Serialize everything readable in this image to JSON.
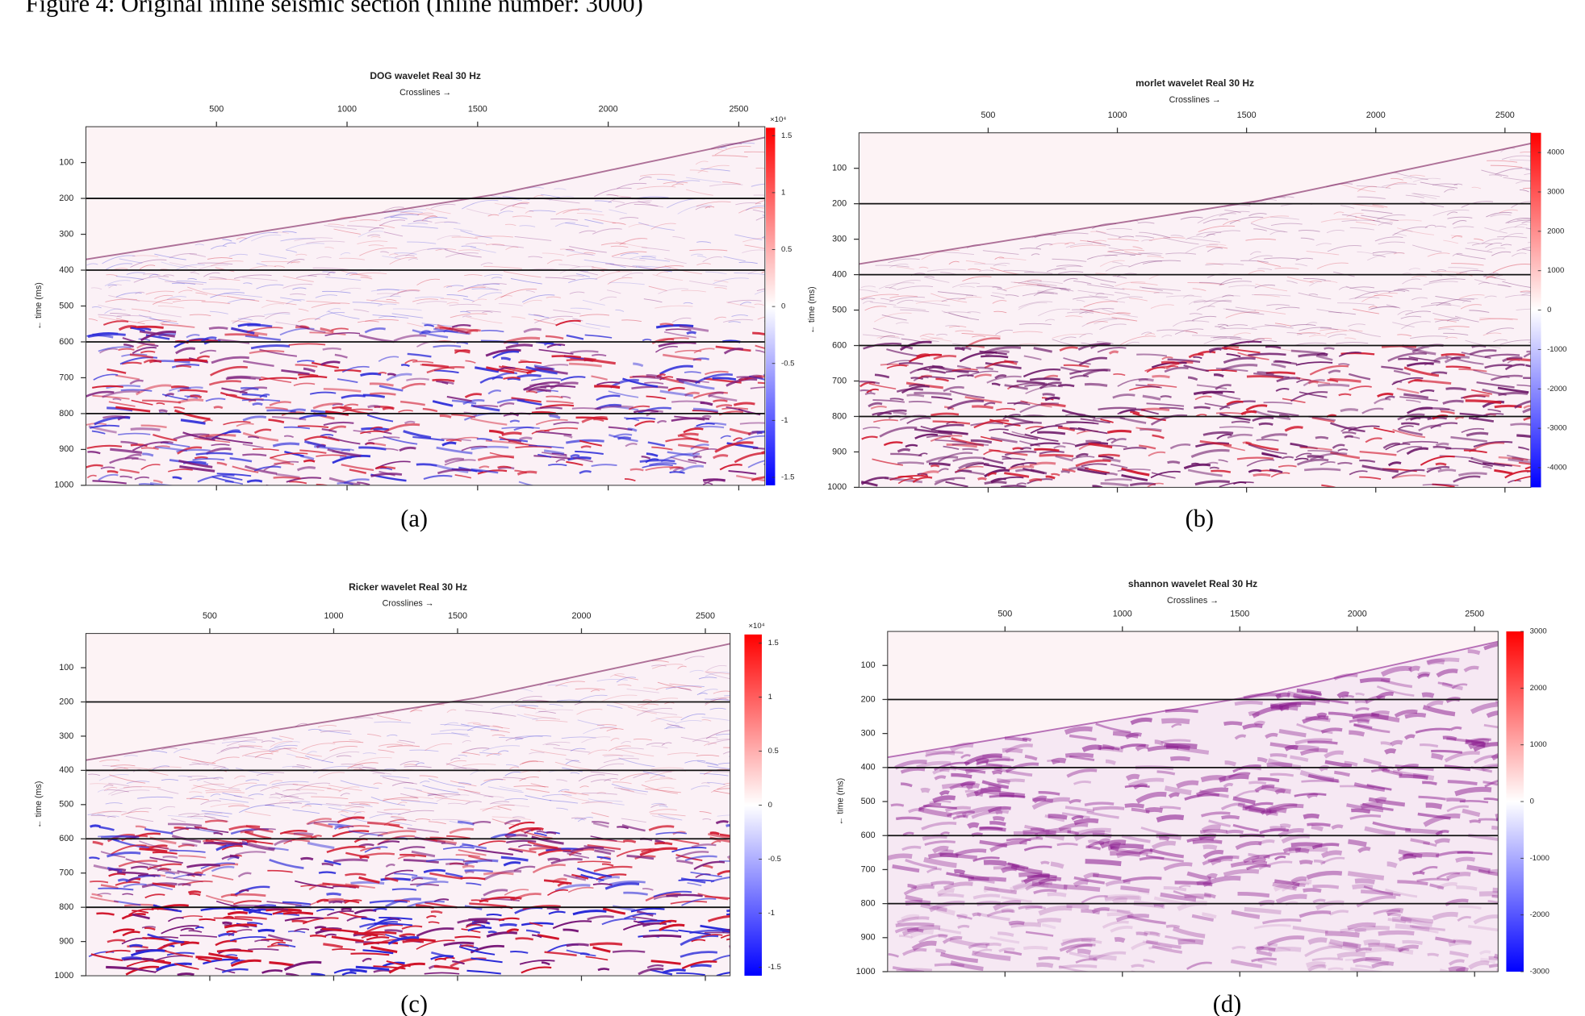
{
  "figure_caption": "Figure 4:  Original inline seismic section (Inline number: 3000)",
  "chart_data": [
    {
      "type": "heatmap",
      "title": "DOG wavelet Real 30 Hz",
      "x_label": "Crosslines →",
      "y_label": "← time (ms)",
      "xlim": [
        0,
        2600
      ],
      "xticks": [
        500,
        1000,
        1500,
        2000,
        2500
      ],
      "ylim": [
        0,
        1000
      ],
      "y_inverted": true,
      "yticks": [
        100,
        200,
        300,
        400,
        500,
        600,
        700,
        800,
        900,
        1000
      ],
      "hlines": [
        200,
        400,
        600,
        800
      ],
      "colorbar": {
        "colormap": [
          "#0000ff",
          "#ffffff",
          "#ff0000"
        ],
        "clim": [
          -1.57,
          1.57
        ],
        "ticks": [
          1.5,
          1,
          0.5,
          0,
          -0.5,
          -1,
          -1.5
        ],
        "exponent_label": "×10⁴"
      },
      "label": "(a)"
    },
    {
      "type": "heatmap",
      "title": "morlet wavelet Real 30 Hz",
      "x_label": "Crosslines →",
      "y_label": "← time (ms)",
      "xlim": [
        0,
        2600
      ],
      "xticks": [
        500,
        1000,
        1500,
        2000,
        2500
      ],
      "ylim": [
        0,
        1000
      ],
      "y_inverted": true,
      "yticks": [
        100,
        200,
        300,
        400,
        500,
        600,
        700,
        800,
        900,
        1000
      ],
      "hlines": [
        200,
        400,
        600,
        800
      ],
      "colorbar": {
        "colormap": [
          "#0000ff",
          "#ffffff",
          "#ff0000"
        ],
        "clim": [
          -4500,
          4500
        ],
        "ticks": [
          4000,
          3000,
          2000,
          1000,
          0,
          -1000,
          -2000,
          -3000,
          -4000
        ]
      },
      "label": "(b)"
    },
    {
      "type": "heatmap",
      "title": "Ricker wavelet Real 30 Hz",
      "x_label": "Crosslines →",
      "y_label": "← time (ms)",
      "xlim": [
        0,
        2600
      ],
      "xticks": [
        500,
        1000,
        1500,
        2000,
        2500
      ],
      "ylim": [
        0,
        1000
      ],
      "y_inverted": true,
      "yticks": [
        100,
        200,
        300,
        400,
        500,
        600,
        700,
        800,
        900,
        1000
      ],
      "hlines": [
        200,
        400,
        600,
        800
      ],
      "colorbar": {
        "colormap": [
          "#0000ff",
          "#ffffff",
          "#ff0000"
        ],
        "clim": [
          -1.58,
          1.58
        ],
        "ticks": [
          1.5,
          1,
          0.5,
          0,
          -0.5,
          -1,
          -1.5
        ],
        "exponent_label": "×10⁴"
      },
      "label": "(c)"
    },
    {
      "type": "heatmap",
      "title": "shannon wavelet Real 30 Hz",
      "x_label": "Crosslines →",
      "y_label": "← time (ms)",
      "xlim": [
        0,
        2600
      ],
      "xticks": [
        500,
        1000,
        1500,
        2000,
        2500
      ],
      "ylim": [
        0,
        1000
      ],
      "y_inverted": true,
      "yticks": [
        100,
        200,
        300,
        400,
        500,
        600,
        700,
        800,
        900,
        1000
      ],
      "hlines": [
        200,
        400,
        600,
        800
      ],
      "colorbar": {
        "colormap": [
          "#0000ff",
          "#ffffff",
          "#ff0000"
        ],
        "clim": [
          -3000,
          3000
        ],
        "ticks": [
          3000,
          2000,
          1000,
          0,
          -1000,
          -2000,
          -3000
        ]
      },
      "label": "(d)"
    }
  ]
}
